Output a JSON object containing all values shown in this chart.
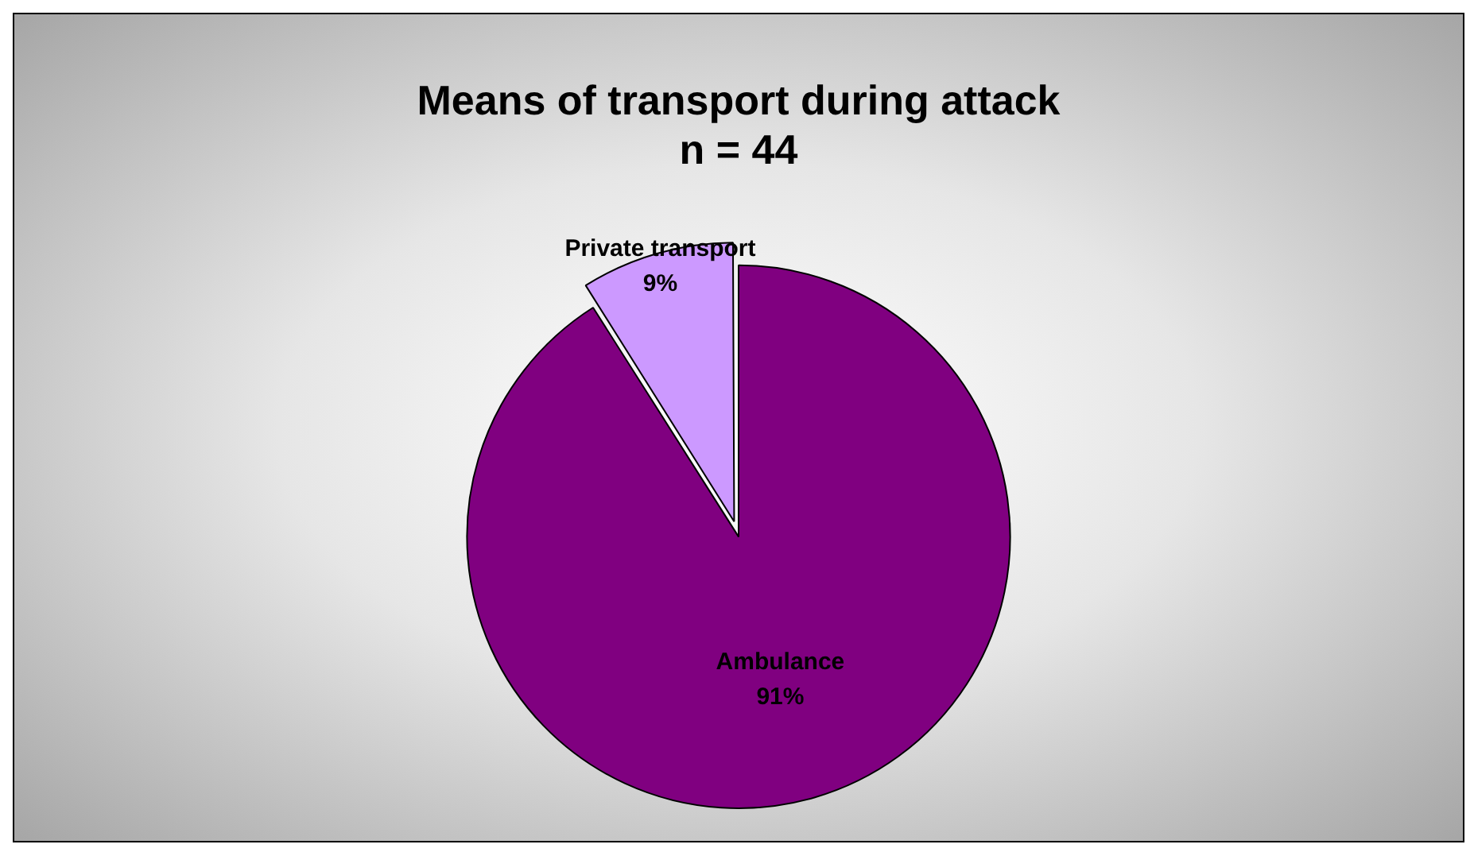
{
  "chart_data": {
    "type": "pie",
    "title": "Means of transport during attack",
    "subtitle": "n = 44",
    "categories": [
      "Ambulance",
      "Private transport"
    ],
    "values": [
      91,
      9
    ],
    "colors": [
      "#800080",
      "#cc99ff"
    ],
    "value_labels": [
      "91%",
      "9%"
    ],
    "legend": false
  }
}
